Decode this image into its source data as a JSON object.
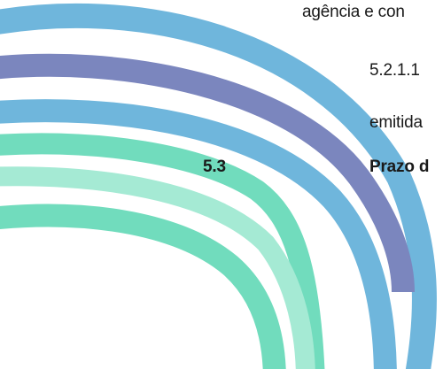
{
  "document": {
    "line1": "agência e con",
    "line2": "5.2.1.1",
    "line3": "emitida",
    "section_number": "5.3",
    "section_title": "Prazo d"
  },
  "colors": {
    "sky_blue": "#6fb6dc",
    "indigo": "#7b86be",
    "mint": "#71dcbd",
    "mint_light": "#a5ead4",
    "text": "#1a1a1a"
  },
  "icons": [
    "decorative-swoosh-graphic"
  ]
}
